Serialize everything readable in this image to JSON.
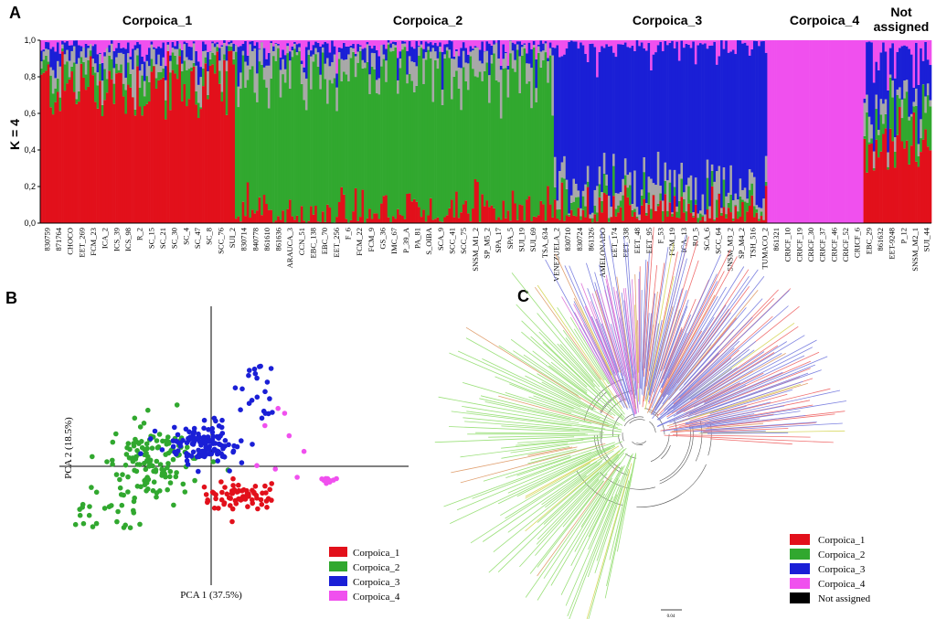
{
  "colors": {
    "Corpoica_1": "#e2101b",
    "Corpoica_2": "#31a82f",
    "Corpoica_3": "#1a1fd6",
    "Corpoica_4": "#f050ee",
    "Not assigned": "#000000",
    "mix_gray": "#a8a8a8"
  },
  "panels": {
    "a": "A",
    "b": "B",
    "c": "C"
  },
  "chart_data": [
    {
      "type": "bar",
      "stacked": true,
      "panel": "A",
      "ylabel": "K = 4",
      "ylim": [
        0,
        1
      ],
      "yticks": [
        "0,0",
        "0,2",
        "0,4",
        "0,6",
        "0,8",
        "1,0"
      ],
      "groups": [
        {
          "name": "Corpoica_1",
          "dominant": "Corpoica_1",
          "share": 0.2
        },
        {
          "name": "Corpoica_2",
          "dominant": "Corpoica_2",
          "share": 0.33
        },
        {
          "name": "Corpoica_3",
          "dominant": "Corpoica_3",
          "share": 0.22
        },
        {
          "name": "Corpoica_4",
          "dominant": "Corpoica_4",
          "share": 0.1
        },
        {
          "name": "Not assigned",
          "dominant": "mixed",
          "share": 0.07
        }
      ],
      "group_labels": [
        "Corpoica_1",
        "Corpoica_2",
        "Corpoica_3",
        "Corpoica_4",
        "Not assigned"
      ],
      "categories": [
        "830759",
        "871764",
        "CHOCO",
        "EET_269",
        "FCM_23",
        "ICA_2",
        "ICS_39",
        "ICS_98",
        "R_2",
        "SC_15",
        "SC_21",
        "SC_30",
        "SC_4",
        "SC_47",
        "SC_8",
        "SCC_76",
        "SUI_2",
        "830714",
        "840778",
        "861610",
        "861636",
        "ARAUCA_3",
        "CCN_51",
        "EBC_138",
        "EBC_70",
        "EET_256",
        "F_6",
        "FCM_22",
        "FCM_9",
        "GS_36",
        "IMC_67",
        "P_39_A",
        "PA_81",
        "S_OIBA",
        "SCA_9",
        "SCC_41",
        "SCC_75",
        "SNSM_M1_2",
        "SP_M5_2",
        "SPA_17",
        "SPA_5",
        "SUI_19",
        "SUI_69",
        "TSA_634",
        "VENEZUELA_2",
        "830710",
        "830724",
        "861326",
        "AMELONADO",
        "EET_174",
        "EET_338",
        "EET_48",
        "EET_95",
        "F_53",
        "FCM_19",
        "ICA_13",
        "RO_5",
        "SCA_6",
        "SCC_64",
        "SNSM_M3_2",
        "SP_M4_2",
        "TSH_516",
        "TUMACO_2",
        "861321",
        "CRICF_10",
        "CRICF_19",
        "CRICF_30",
        "CRICF_37",
        "CRICF_46",
        "CRICF_52",
        "CRICF_6",
        "EBC_29",
        "861632",
        "EET-9248",
        "P_12",
        "SNSM_M2_1",
        "SUI_44"
      ]
    },
    {
      "type": "scatter",
      "panel": "B",
      "xlabel": "PCA 1  (37.5%)",
      "ylabel": "PCA 2 (18.5%)",
      "series": [
        {
          "name": "Corpoica_1",
          "center": [
            4.0,
            -4.5
          ],
          "spread": [
            5.0,
            2.6
          ],
          "count": 70
        },
        {
          "name": "Corpoica_2",
          "center": [
            -9.0,
            0.5
          ],
          "spread": [
            7.0,
            5.5
          ],
          "count": 160
        },
        {
          "name": "Corpoica_3",
          "center": [
            -1.0,
            3.5
          ],
          "spread": [
            5.5,
            3.0
          ],
          "count": 140
        },
        {
          "name": "Corpoica_4",
          "center": [
            17.0,
            -2.0
          ],
          "spread": [
            1.2,
            0.4
          ],
          "count": 22
        }
      ],
      "legend": [
        "Corpoica_1",
        "Corpoica_2",
        "Corpoica_3",
        "Corpoica_4"
      ]
    },
    {
      "type": "tree",
      "panel": "C",
      "scale_label": "0.04",
      "clades": [
        {
          "name": "Corpoica_1",
          "angle_from": -90,
          "angle_to": 5,
          "tips": 60
        },
        {
          "name": "Corpoica_2",
          "angle_from": 100,
          "angle_to": 240,
          "tips": 120
        },
        {
          "name": "Corpoica_3",
          "angle_from": 240,
          "angle_to": 360,
          "tips": 110
        },
        {
          "name": "Corpoica_4",
          "angle_from": -120,
          "angle_to": -90,
          "tips": 25
        }
      ],
      "legend": [
        "Corpoica_1",
        "Corpoica_2",
        "Corpoica_3",
        "Corpoica_4",
        "Not assigned"
      ]
    }
  ]
}
